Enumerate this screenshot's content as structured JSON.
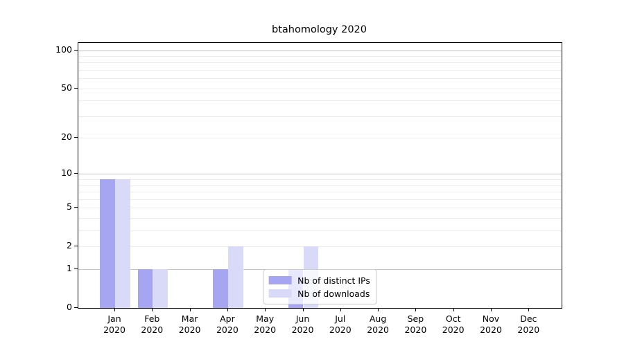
{
  "chart_data": {
    "type": "bar",
    "title": "btahomology 2020",
    "categories": [
      "Jan 2020",
      "Feb 2020",
      "Mar 2020",
      "Apr 2020",
      "May 2020",
      "Jun 2020",
      "Jul 2020",
      "Aug 2020",
      "Sep 2020",
      "Oct 2020",
      "Nov 2020",
      "Dec 2020"
    ],
    "series": [
      {
        "name": "Nb of distinct IPs",
        "color": "#a5a5f1",
        "values": [
          9,
          1,
          0,
          1,
          0,
          1,
          0,
          0,
          0,
          0,
          0,
          0
        ]
      },
      {
        "name": "Nb of downloads",
        "color": "#d9d9f8",
        "values": [
          9,
          1,
          0,
          2,
          0,
          2,
          0,
          0,
          0,
          0,
          0,
          0
        ]
      }
    ],
    "xlabel": "",
    "ylabel": "",
    "yscale": "log1p",
    "ylim": [
      0,
      114
    ],
    "yticks": [
      0,
      1,
      2,
      5,
      10,
      20,
      50,
      100
    ],
    "gridlines": {
      "major": [
        1,
        10,
        100
      ],
      "minor": [
        2,
        3,
        4,
        5,
        6,
        7,
        8,
        9,
        20,
        30,
        40,
        50,
        60,
        70,
        80,
        90
      ]
    },
    "grid": true,
    "legend_position": "lower center"
  },
  "colors": {
    "background": "#ffffff",
    "axis": "#000000",
    "grid_minor": "#ececec",
    "grid_major": "#c3c3c3",
    "legend_border": "#cccccc",
    "text": "#000000"
  }
}
